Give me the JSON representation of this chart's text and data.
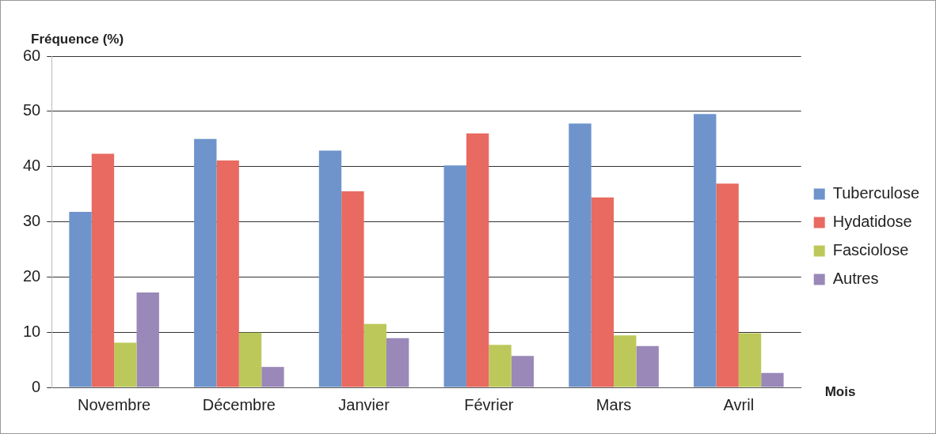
{
  "chart_data": {
    "type": "bar",
    "ylabel": "Fréquence (%)",
    "xlabel": "Mois",
    "categories": [
      "Novembre",
      "Décembre",
      "Janvier",
      "Février",
      "Mars",
      "Avril"
    ],
    "series": [
      {
        "name": "Tuberculose",
        "color": "#6f94cc",
        "values": [
          31.8,
          45.0,
          42.9,
          40.2,
          47.8,
          49.5
        ]
      },
      {
        "name": "Hydatidose",
        "color": "#e86a60",
        "values": [
          42.3,
          41.1,
          35.5,
          46.0,
          34.4,
          36.9
        ]
      },
      {
        "name": "Fasciolose",
        "color": "#bcc95a",
        "values": [
          8.1,
          9.9,
          11.5,
          7.7,
          9.4,
          9.8
        ]
      },
      {
        "name": "Autres",
        "color": "#9a88b8",
        "values": [
          17.2,
          3.7,
          8.9,
          5.7,
          7.5,
          2.6
        ]
      }
    ],
    "ylim": [
      0,
      60
    ],
    "yticks": [
      0,
      10,
      20,
      30,
      40,
      50,
      60
    ],
    "grid": "y",
    "legend": "right"
  }
}
